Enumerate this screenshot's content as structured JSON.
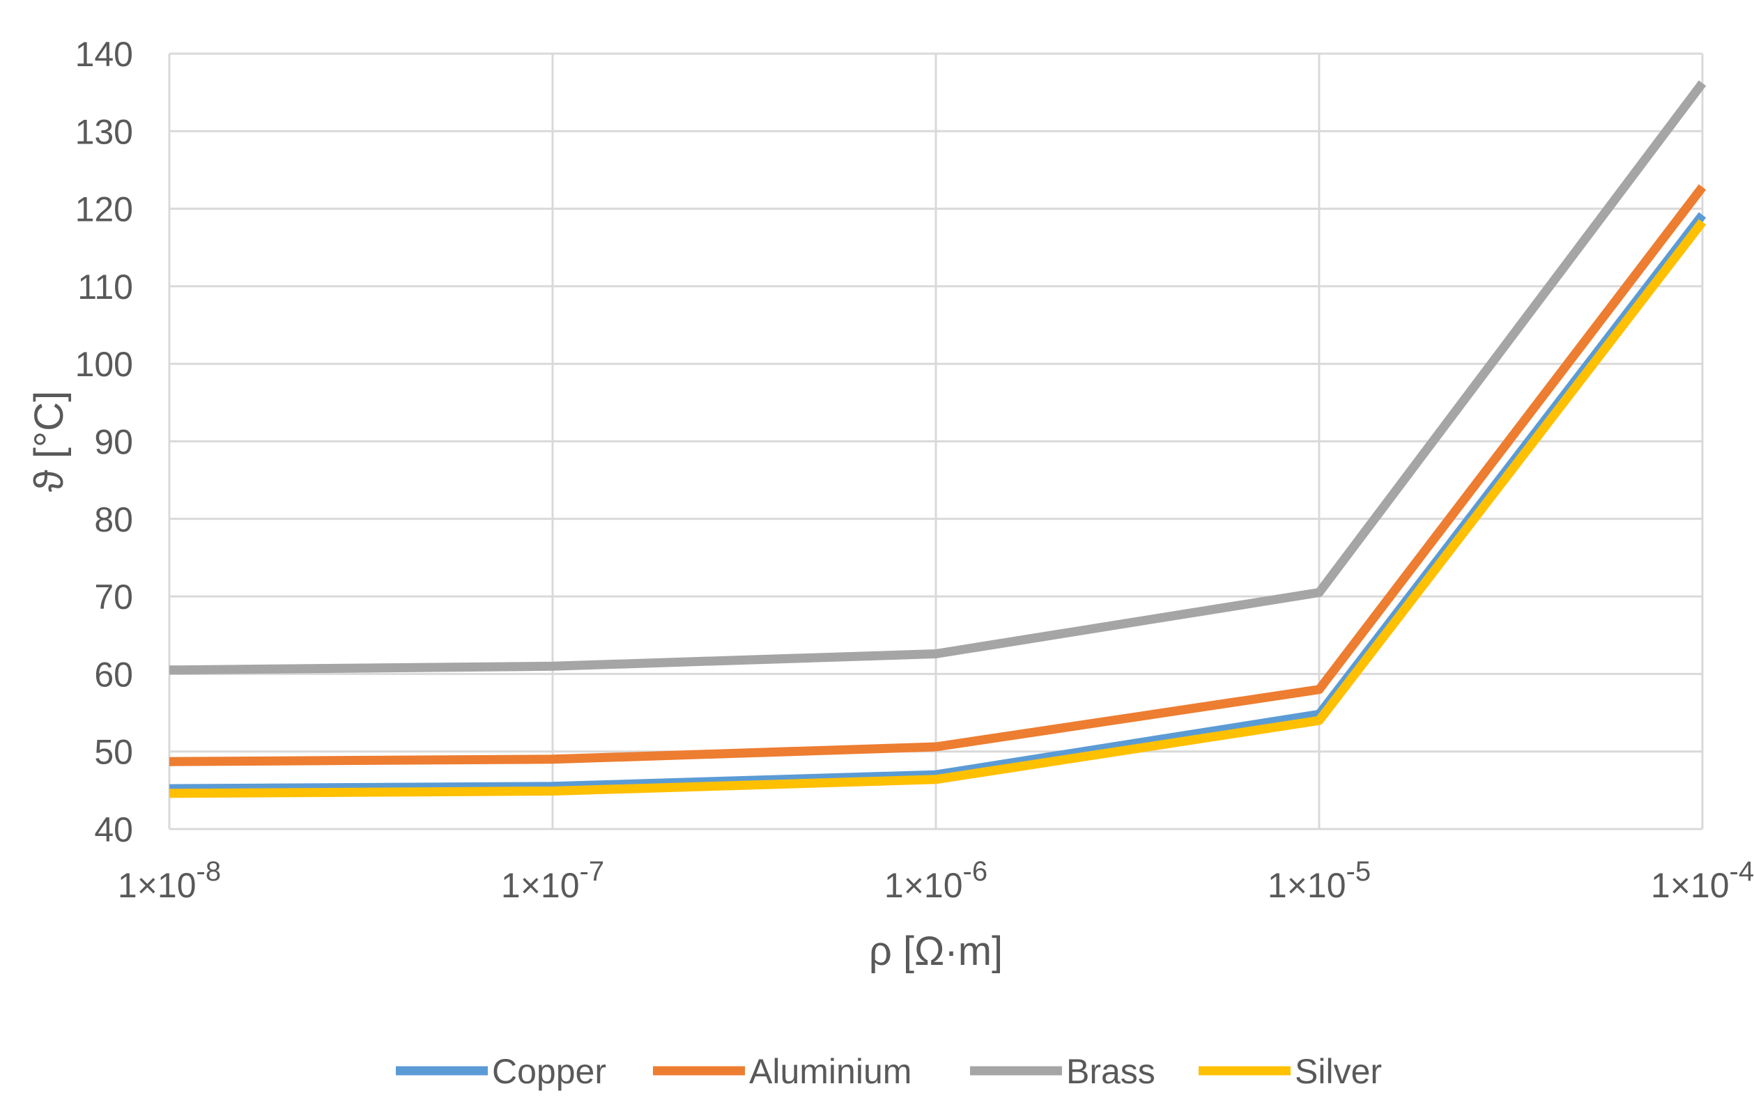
{
  "chart_data": {
    "type": "line",
    "xscale": "log",
    "x": [
      1e-08,
      1e-07,
      1e-06,
      1e-05,
      0.0001
    ],
    "x_tick_labels": [
      {
        "base": "1×10",
        "exp": "-8"
      },
      {
        "base": "1×10",
        "exp": "-7"
      },
      {
        "base": "1×10",
        "exp": "-6"
      },
      {
        "base": "1×10",
        "exp": "-5"
      },
      {
        "base": "1×10",
        "exp": "-4"
      }
    ],
    "xlabel": "ρ [Ω·m]",
    "ylabel": "ϑ [°C]",
    "ylim": [
      40,
      140
    ],
    "y_ticks": [
      40,
      50,
      60,
      70,
      80,
      90,
      100,
      110,
      120,
      130,
      140
    ],
    "grid": true,
    "legend": "bottom",
    "series": [
      {
        "name": "Copper",
        "color": "#5B9BD5",
        "values": [
          45.2,
          45.5,
          47.0,
          54.8,
          119.2
        ]
      },
      {
        "name": "Aluminium",
        "color": "#ED7D31",
        "values": [
          48.7,
          49.0,
          50.6,
          58.0,
          122.8
        ]
      },
      {
        "name": "Brass",
        "color": "#A5A5A5",
        "values": [
          60.5,
          61.0,
          62.6,
          70.5,
          136.2
        ]
      },
      {
        "name": "Silver",
        "color": "#FFC000",
        "values": [
          44.6,
          44.9,
          46.4,
          54.0,
          118.3
        ]
      }
    ]
  }
}
